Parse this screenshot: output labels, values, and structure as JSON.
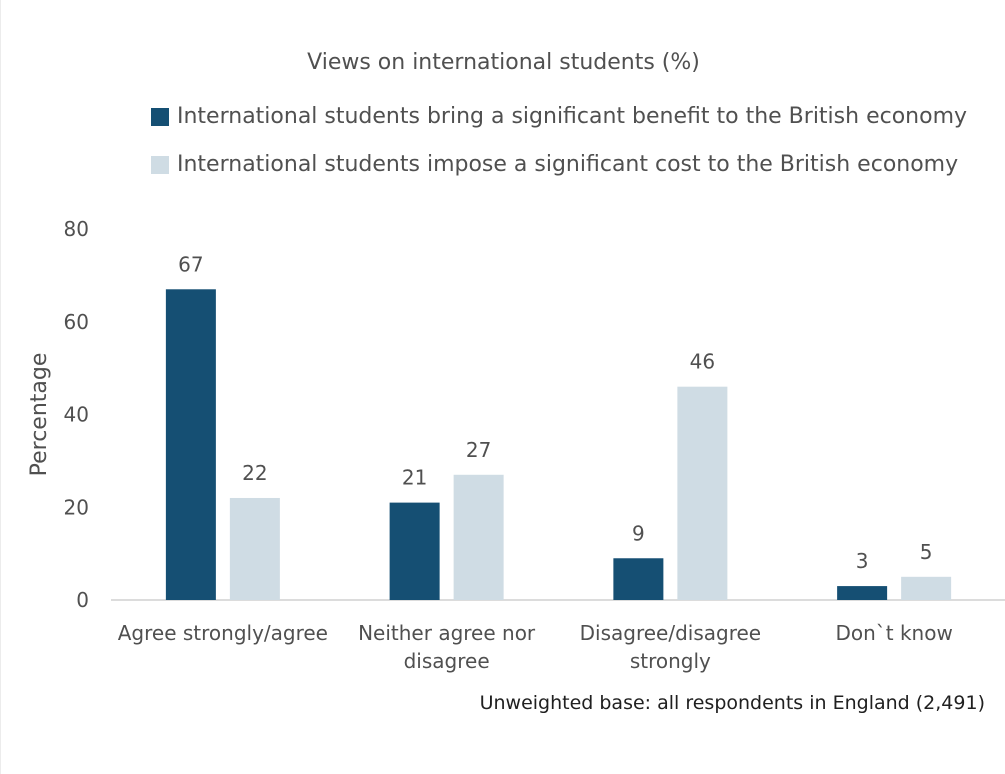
{
  "chart_data": {
    "type": "bar",
    "title": "Views on international students (%)",
    "ylabel": "Percentage",
    "xlabel": "",
    "ylim": [
      0,
      80
    ],
    "yticks": [
      0,
      20,
      40,
      60,
      80
    ],
    "grid": false,
    "legend_position": "top",
    "categories": [
      [
        "Agree strongly/agree"
      ],
      [
        "Neither agree nor",
        "disagree"
      ],
      [
        "Disagree/disagree",
        "strongly"
      ],
      [
        "Don`t know"
      ]
    ],
    "series": [
      {
        "name": "International students bring a significant benefit to the British economy",
        "color": "#154f73",
        "values": [
          67,
          21,
          9,
          3
        ]
      },
      {
        "name": "International students impose a significant cost to the British economy",
        "color": "#cfdce4",
        "values": [
          22,
          27,
          46,
          5
        ]
      }
    ],
    "footnote": "Unweighted base: all respondents in England (2,491)"
  }
}
